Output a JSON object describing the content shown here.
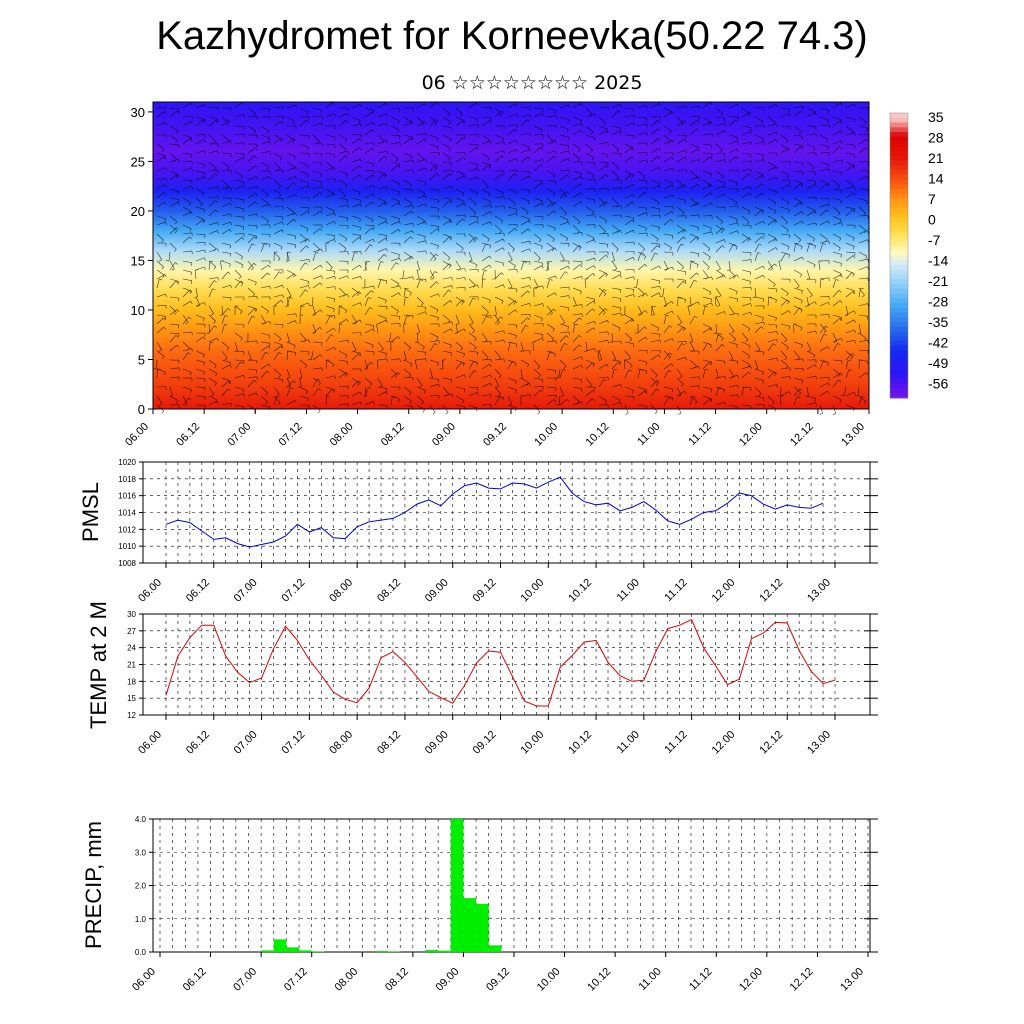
{
  "header": {
    "title": "Kazhydromet for Korneevka(50.22 74.3)",
    "subtitle": "06 ☆☆☆☆☆☆☆☆ 2025"
  },
  "colors": {
    "pmsl_line": "#0000dd",
    "temp_line": "#dd0000",
    "precip_bar": "#00ee00",
    "grid": "#000000"
  },
  "chart_data": [
    {
      "id": "cross_section",
      "type": "heatmap",
      "title": "",
      "xlabel": "",
      "ylabel": "",
      "x_ticks": [
        "06.00",
        "06.12",
        "07.00",
        "07.12",
        "08.00",
        "08.12",
        "09.00",
        "09.12",
        "10.00",
        "10.12",
        "11.00",
        "11.12",
        "12.00",
        "12.12",
        "13.00"
      ],
      "y_ticks": [
        0,
        5,
        10,
        15,
        20,
        25,
        30
      ],
      "ylim": [
        0,
        31
      ],
      "colorbar_labels": [
        "35",
        "28",
        "21",
        "14",
        "7",
        "0",
        "-7",
        "-14",
        "-21",
        "-28",
        "-35",
        "-42",
        "-49",
        "-56"
      ],
      "temperature_profile": {
        "levels": [
          0,
          2,
          4,
          6,
          8,
          10,
          12,
          14,
          16,
          18,
          20,
          22,
          24,
          26,
          28,
          31
        ],
        "values": [
          22,
          18,
          15,
          12,
          8,
          3,
          -3,
          -9,
          -18,
          -28,
          -38,
          -47,
          -55,
          -58,
          -55,
          -52
        ]
      },
      "overlay": "wind barbs"
    },
    {
      "id": "pmsl",
      "type": "line",
      "ylabel": "PMSL",
      "ylim": [
        1008,
        1020
      ],
      "y_ticks": [
        1008,
        1010,
        1012,
        1014,
        1016,
        1018,
        1020
      ],
      "x_ticks": [
        "06.00",
        "06.12",
        "07.00",
        "07.12",
        "08.00",
        "08.12",
        "09.00",
        "09.12",
        "10.00",
        "10.12",
        "11.00",
        "11.12",
        "12.00",
        "12.12",
        "13.00"
      ],
      "x_step_hours": 3,
      "values": [
        1012.6,
        1013.1,
        1012.8,
        1011.8,
        1010.8,
        1011.0,
        1010.3,
        1009.9,
        1010.2,
        1010.5,
        1011.2,
        1012.6,
        1011.7,
        1012.2,
        1011.0,
        1010.9,
        1012.3,
        1012.9,
        1013.1,
        1013.3,
        1014.0,
        1015.0,
        1015.5,
        1014.8,
        1016.2,
        1017.2,
        1017.5,
        1016.9,
        1016.8,
        1017.5,
        1017.4,
        1016.9,
        1017.6,
        1018.2,
        1016.3,
        1015.3,
        1014.9,
        1015.1,
        1014.2,
        1014.6,
        1015.3,
        1014.3,
        1013.0,
        1012.6,
        1013.2,
        1014.0,
        1014.2,
        1015.1,
        1016.3,
        1016.0,
        1015.0,
        1014.4,
        1014.9,
        1014.6,
        1014.5,
        1015.1
      ]
    },
    {
      "id": "temp2m",
      "type": "line",
      "ylabel": "TEMP at 2 M",
      "ylim": [
        12,
        30
      ],
      "y_ticks": [
        12,
        15,
        18,
        21,
        24,
        27,
        30
      ],
      "x_ticks": [
        "06.00",
        "06.12",
        "07.00",
        "07.12",
        "08.00",
        "08.12",
        "09.00",
        "09.12",
        "10.00",
        "10.12",
        "11.00",
        "11.12",
        "12.00",
        "12.12",
        "13.00"
      ],
      "x_step_hours": 3,
      "values": [
        15.5,
        22.5,
        25.8,
        28.0,
        28.0,
        22.5,
        19.6,
        17.8,
        18.6,
        23.8,
        27.8,
        25.3,
        21.8,
        19.1,
        16.1,
        14.8,
        14.2,
        16.8,
        22.2,
        23.3,
        21.4,
        18.8,
        16.2,
        15.1,
        14.1,
        17.3,
        21.3,
        23.4,
        23.2,
        18.9,
        14.5,
        13.6,
        13.6,
        20.5,
        22.6,
        25.0,
        25.3,
        21.4,
        19.0,
        18.0,
        18.2,
        23.3,
        27.4,
        28.0,
        29.0,
        24.0,
        20.8,
        17.4,
        18.4,
        25.6,
        26.6,
        28.5,
        28.4,
        23.5,
        19.8,
        17.6,
        18.2
      ]
    },
    {
      "id": "precip",
      "type": "bar",
      "ylabel": "PRECIP, mm",
      "ylim": [
        0,
        4
      ],
      "y_ticks": [
        "0.0",
        "1.0",
        "2.0",
        "3.0",
        "4.0"
      ],
      "x_ticks": [
        "06.00",
        "06.12",
        "07.00",
        "07.12",
        "08.00",
        "08.12",
        "09.00",
        "09.12",
        "10.00",
        "10.12",
        "11.00",
        "11.12",
        "12.00",
        "12.12",
        "13.00"
      ],
      "x_step_hours": 3,
      "values": [
        0,
        0,
        0,
        0,
        0,
        0,
        0,
        0,
        0.05,
        0.38,
        0.14,
        0.05,
        0.02,
        0,
        0,
        0,
        0,
        0.03,
        0.02,
        0,
        0,
        0.06,
        0.04,
        4.0,
        1.62,
        1.45,
        0.2,
        0,
        0,
        0,
        0,
        0,
        0,
        0,
        0,
        0,
        0,
        0,
        0,
        0,
        0,
        0,
        0,
        0,
        0,
        0,
        0,
        0,
        0,
        0,
        0,
        0,
        0,
        0,
        0,
        0
      ]
    }
  ]
}
